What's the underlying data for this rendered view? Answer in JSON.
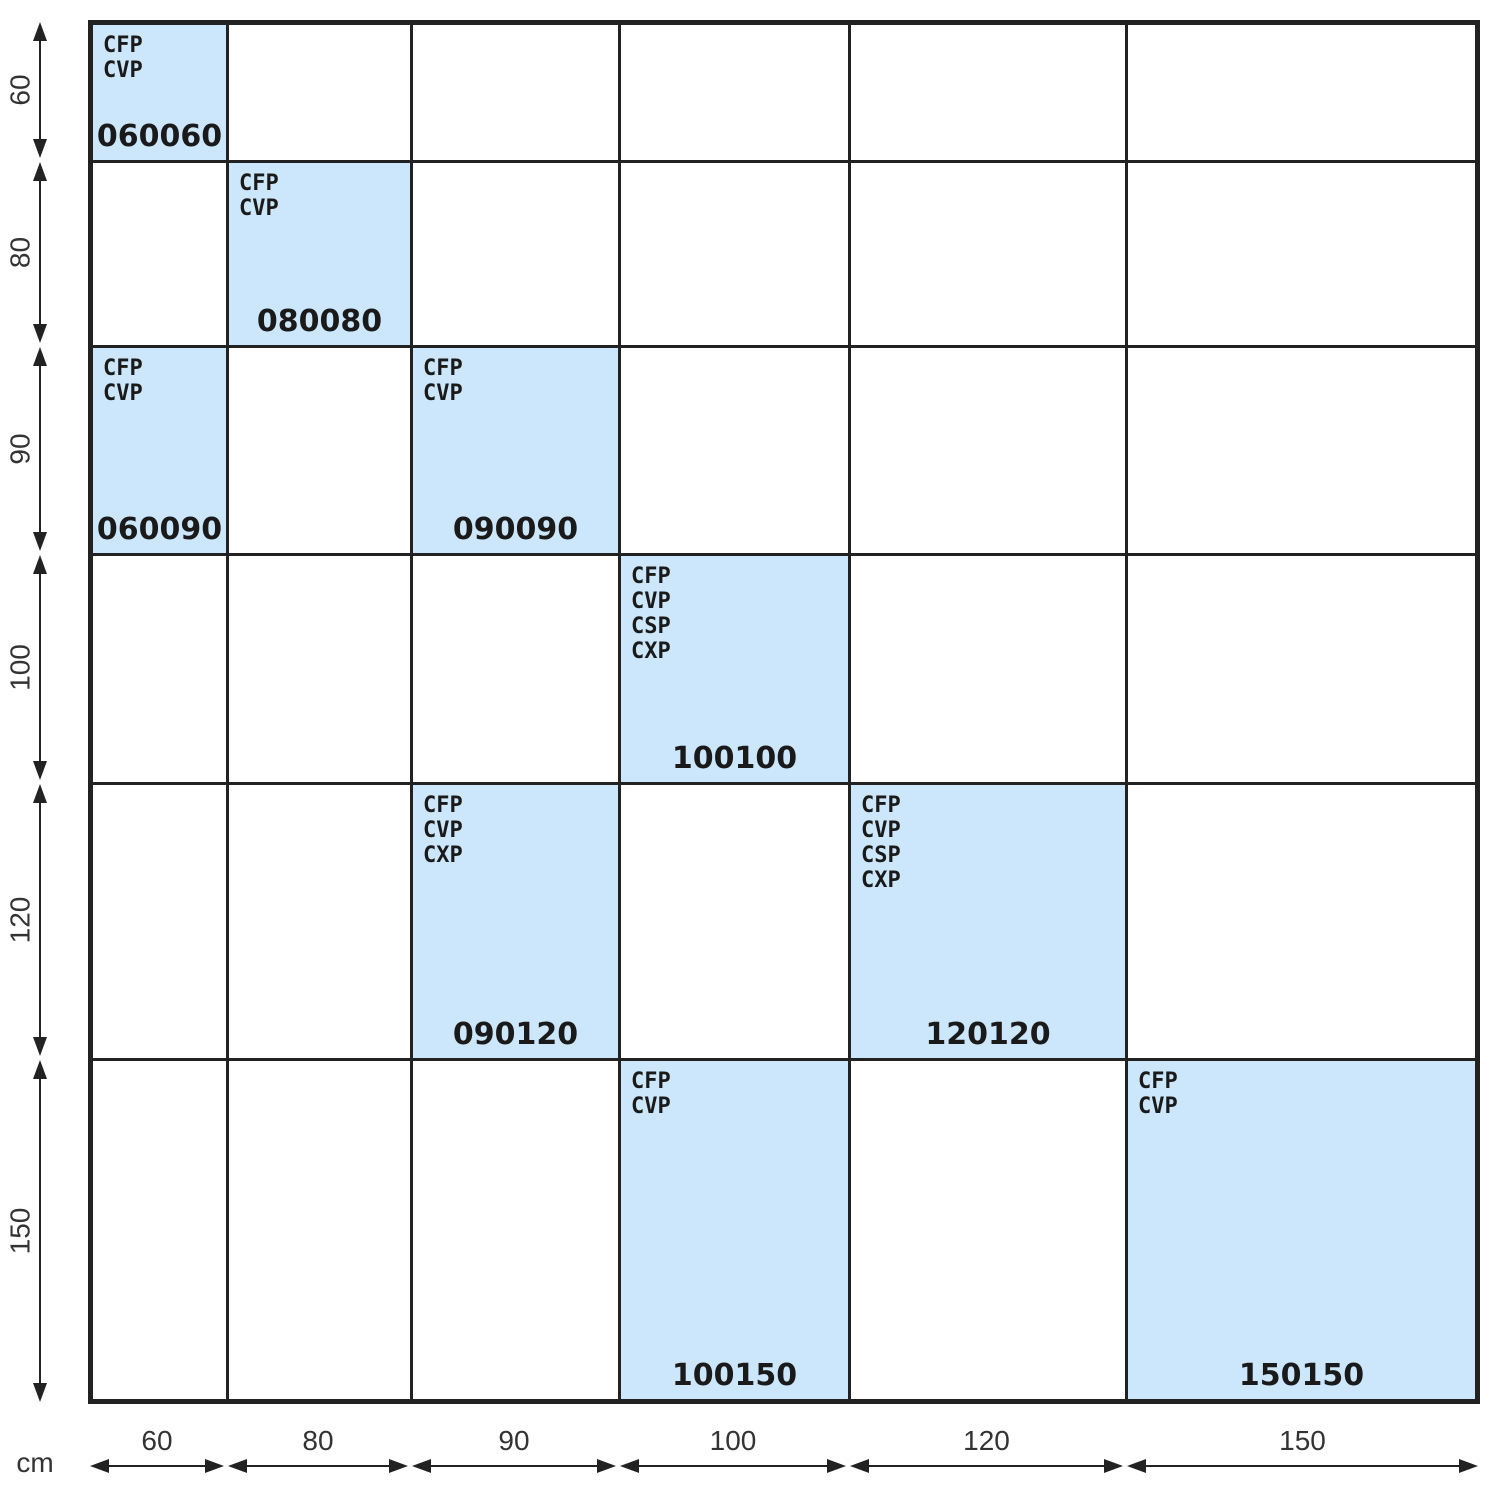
{
  "unit": "cm",
  "columns": [
    "60",
    "80",
    "90",
    "100",
    "120",
    "150"
  ],
  "rows": [
    "60",
    "80",
    "90",
    "100",
    "120",
    "150"
  ],
  "cells": [
    {
      "row": 0,
      "col": 0,
      "codes": [
        "CFP",
        "CVP"
      ],
      "ref": "060060"
    },
    {
      "row": 1,
      "col": 1,
      "codes": [
        "CFP",
        "CVP"
      ],
      "ref": "080080"
    },
    {
      "row": 2,
      "col": 0,
      "codes": [
        "CFP",
        "CVP"
      ],
      "ref": "060090"
    },
    {
      "row": 2,
      "col": 2,
      "codes": [
        "CFP",
        "CVP"
      ],
      "ref": "090090"
    },
    {
      "row": 3,
      "col": 3,
      "codes": [
        "CFP",
        "CVP",
        "CSP",
        "CXP"
      ],
      "ref": "100100"
    },
    {
      "row": 4,
      "col": 2,
      "codes": [
        "CFP",
        "CVP",
        "CXP"
      ],
      "ref": "090120"
    },
    {
      "row": 4,
      "col": 4,
      "codes": [
        "CFP",
        "CVP",
        "CSP",
        "CXP"
      ],
      "ref": "120120"
    },
    {
      "row": 5,
      "col": 3,
      "codes": [
        "CFP",
        "CVP"
      ],
      "ref": "100150"
    },
    {
      "row": 5,
      "col": 5,
      "codes": [
        "CFP",
        "CVP"
      ],
      "ref": "150150"
    }
  ],
  "colors": {
    "cell_fill": "#cce7fb",
    "grid_line": "#222222"
  }
}
